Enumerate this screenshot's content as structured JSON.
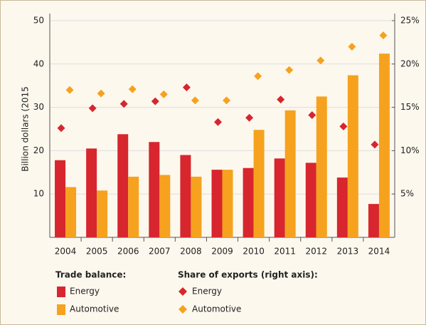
{
  "chart_data": {
    "type": "bar",
    "y_label": "Billion dollars (2015",
    "categories": [
      "2004",
      "2005",
      "2006",
      "2007",
      "2008",
      "2009",
      "2010",
      "2011",
      "2012",
      "2013",
      "2014"
    ],
    "ylim": [
      0,
      50
    ],
    "yticks": [
      10,
      20,
      30,
      40,
      50
    ],
    "y2lim": [
      0,
      25
    ],
    "y2ticks": [
      {
        "value": 5,
        "label": "5%"
      },
      {
        "value": 10,
        "label": "10%"
      },
      {
        "value": 15,
        "label": "15%"
      },
      {
        "value": 20,
        "label": "20%"
      },
      {
        "value": 25,
        "label": "25%"
      }
    ],
    "grid": true,
    "legend": {
      "bar_heading": "Trade balance:",
      "share_heading": "Share of exports (right axis):"
    },
    "series": [
      {
        "name": "Energy",
        "kind": "bar",
        "color": "#d7262e",
        "values": [
          17.8,
          20.5,
          23.8,
          22,
          19,
          15.6,
          16,
          18.2,
          17.2,
          13.8,
          7.7
        ]
      },
      {
        "name": "Automotive",
        "kind": "bar",
        "color": "#f6a21e",
        "values": [
          11.6,
          10.8,
          14,
          14.4,
          14,
          15.6,
          24.8,
          29.3,
          32.5,
          37.4,
          42.4
        ]
      },
      {
        "name": "Energy",
        "kind": "diamond",
        "axis": "y2",
        "color": "#d7262e",
        "values": [
          12.6,
          14.9,
          15.4,
          15.7,
          17.3,
          13.3,
          13.8,
          15.9,
          14.1,
          12.8,
          10.7
        ]
      },
      {
        "name": "Automotive",
        "kind": "diamond",
        "axis": "y2",
        "color": "#f6a21e",
        "values": [
          17.0,
          16.6,
          17.1,
          16.5,
          15.8,
          15.8,
          18.6,
          19.3,
          20.4,
          22.0,
          23.3
        ]
      }
    ]
  }
}
